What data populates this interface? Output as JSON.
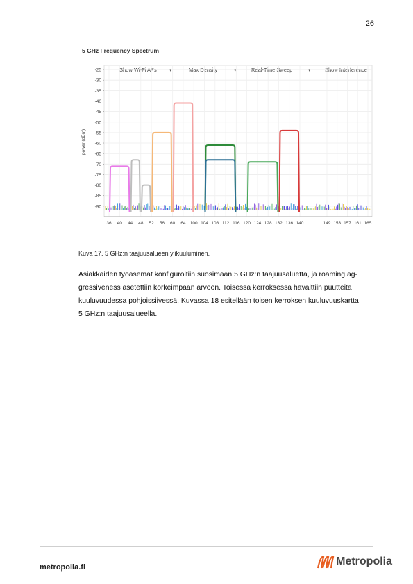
{
  "page_number": "26",
  "figure": {
    "chart_data": {
      "type": "line",
      "title": "5 GHz Frequency Spectrum",
      "ylabel": "power (dBm)",
      "xlabel": "",
      "controls": [
        "Show Wi-Fi APs",
        "Max Density",
        "Real-Time Sweep",
        "Show Interference"
      ],
      "y_ticks": [
        "-25",
        "-30",
        "-35",
        "-40",
        "-45",
        "-50",
        "-55",
        "-60",
        "-65",
        "-70",
        "-75",
        "-80",
        "-85",
        "-90"
      ],
      "ylim": [
        -95,
        -23
      ],
      "x_ticks": [
        "36",
        "40",
        "44",
        "48",
        "52",
        "56",
        "60",
        "64",
        "100",
        "104",
        "108",
        "112",
        "116",
        "120",
        "124",
        "128",
        "132",
        "136",
        "140",
        "149",
        "153",
        "157",
        "161",
        "165"
      ],
      "series": [
        {
          "color": "#e87be8",
          "x_range": [
            36,
            44
          ],
          "peak": -71
        },
        {
          "color": "#bdbdbd",
          "x_range": [
            44,
            48
          ],
          "peak": -68
        },
        {
          "color": "#bdbdbd",
          "x_range": [
            48,
            52
          ],
          "peak": -80
        },
        {
          "color": "#f5b878",
          "x_range": [
            52,
            60
          ],
          "peak": -55
        },
        {
          "color": "#f4a2a2",
          "x_range": [
            60,
            100
          ],
          "peak": -41
        },
        {
          "color": "#2e8b3a",
          "x_range": [
            104,
            116
          ],
          "peak": -61
        },
        {
          "color": "#2a6f93",
          "x_range": [
            104,
            116
          ],
          "peak": -68
        },
        {
          "color": "#49a85a",
          "x_range": [
            120,
            132
          ],
          "peak": -69
        },
        {
          "color": "#d83a3a",
          "x_range": [
            132,
            140
          ],
          "peak": -54
        }
      ],
      "grid": true
    }
  },
  "caption": "Kuva 17. 5 GHz:n taajuusalueen ylikuuluminen.",
  "paragraph_lines": [
    "Asiakkaiden työasemat konfiguroitiin suosimaan 5 GHz:n taajuusaluetta, ja roaming ag-",
    "gressiveness asetettiin korkeimpaan arvoon. Toisessa kerroksessa havaittiin puutteita",
    "kuuluvuudessa pohjoissiivessä. Kuvassa 18 esitellään toisen kerroksen kuuluvuuskartta",
    "5 GHz:n taajuusalueella."
  ],
  "footer": {
    "site": "metropolia.fi",
    "brand": "Metropolia",
    "logo_color": "#e85d1f"
  }
}
